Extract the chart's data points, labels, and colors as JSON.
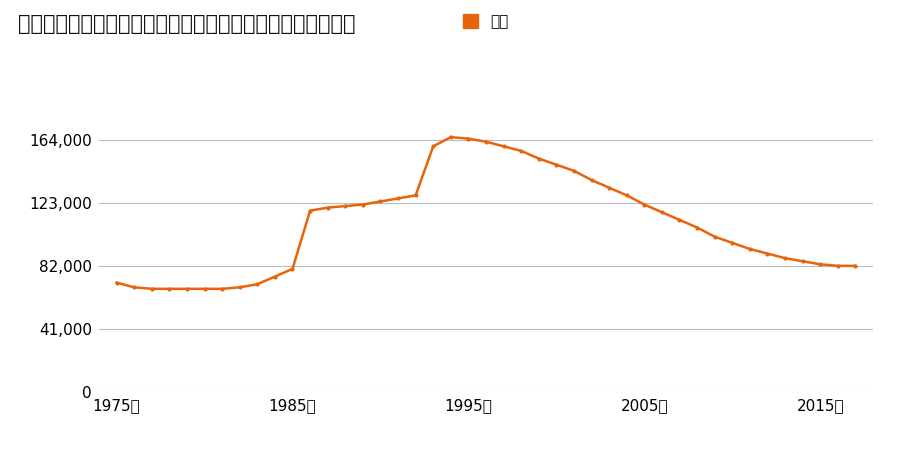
{
  "title": "愛知県新城市字町並１８番、１９番合併ほか１筆の地価推移",
  "legend_label": "価格",
  "line_color": "#e8640a",
  "marker_color": "#e8640a",
  "background_color": "#ffffff",
  "years": [
    1975,
    1976,
    1977,
    1978,
    1979,
    1980,
    1981,
    1982,
    1983,
    1984,
    1985,
    1986,
    1987,
    1988,
    1989,
    1990,
    1991,
    1992,
    1993,
    1994,
    1995,
    1996,
    1997,
    1998,
    1999,
    2000,
    2001,
    2002,
    2003,
    2004,
    2005,
    2006,
    2007,
    2008,
    2009,
    2010,
    2011,
    2012,
    2013,
    2014,
    2015,
    2016,
    2017
  ],
  "values": [
    71000,
    68000,
    67000,
    67000,
    67000,
    67000,
    67000,
    68000,
    70000,
    75000,
    80000,
    118000,
    120000,
    121000,
    122000,
    124000,
    126000,
    128000,
    160000,
    166000,
    165000,
    163000,
    160000,
    157000,
    152000,
    148000,
    144000,
    138000,
    133000,
    128000,
    122000,
    117000,
    112000,
    107000,
    101000,
    97000,
    93000,
    90000,
    87000,
    85000,
    83000,
    82000,
    82000
  ],
  "yticks": [
    0,
    41000,
    82000,
    123000,
    164000
  ],
  "ytick_labels": [
    "0",
    "41,000",
    "82,000",
    "123,000",
    "164,000"
  ],
  "xticks": [
    1975,
    1985,
    1995,
    2005,
    2015
  ],
  "xtick_labels": [
    "1975年",
    "1985年",
    "1995年",
    "2005年",
    "2015年"
  ],
  "ylim": [
    0,
    185000
  ],
  "xlim": [
    1974,
    2018
  ],
  "title_fontsize": 15,
  "tick_fontsize": 11,
  "legend_fontsize": 11
}
